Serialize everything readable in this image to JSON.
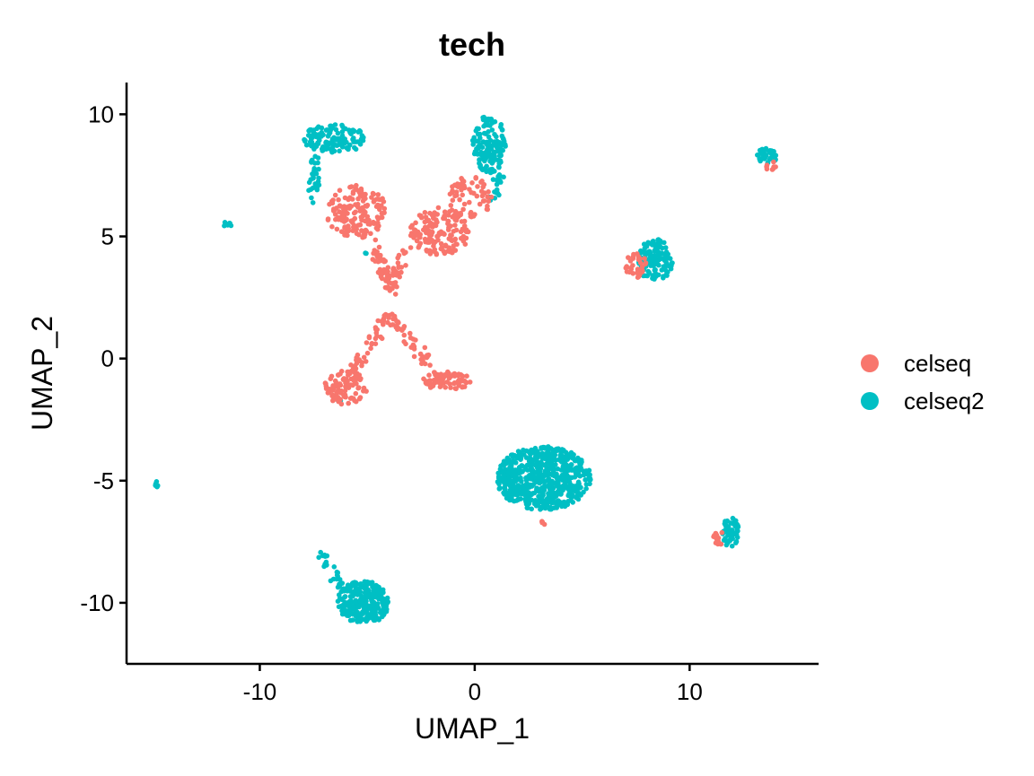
{
  "chart_data": {
    "type": "scatter",
    "title": "tech",
    "xlabel": "UMAP_1",
    "ylabel": "UMAP_2",
    "xlim": [
      -16.2,
      16
    ],
    "ylim": [
      -12.5,
      11.3
    ],
    "xticks": [
      -10,
      0,
      10
    ],
    "yticks": [
      -10,
      -5,
      0,
      5,
      10
    ],
    "grid": false,
    "legend_position": "right",
    "series": [
      {
        "name": "celseq",
        "color": "#F8766D"
      },
      {
        "name": "celseq2",
        "color": "#00BFC4"
      }
    ],
    "clusters": [
      {
        "series": "celseq",
        "shape": "ellipse",
        "cx": -5.5,
        "cy": 6.0,
        "rx": 1.4,
        "ry": 1.1,
        "n": 160
      },
      {
        "series": "celseq",
        "shape": "ellipse",
        "cx": -1.6,
        "cy": 5.2,
        "rx": 1.4,
        "ry": 1.0,
        "n": 150
      },
      {
        "series": "celseq",
        "shape": "ellipse",
        "cx": -0.2,
        "cy": 6.6,
        "rx": 1.0,
        "ry": 0.9,
        "n": 60
      },
      {
        "series": "celseq",
        "shape": "line",
        "from": [
          -4.7,
          4.7
        ],
        "to": [
          -3.9,
          2.8
        ],
        "n": 45
      },
      {
        "series": "celseq",
        "shape": "line",
        "from": [
          -3.1,
          4.6
        ],
        "to": [
          -3.9,
          2.9
        ],
        "n": 30
      },
      {
        "series": "celseq",
        "shape": "line",
        "from": [
          -4.0,
          1.8
        ],
        "to": [
          -5.6,
          -0.5
        ],
        "n": 45
      },
      {
        "series": "celseq",
        "shape": "line",
        "from": [
          -4.0,
          1.8
        ],
        "to": [
          -2.2,
          -0.2
        ],
        "n": 45
      },
      {
        "series": "celseq",
        "shape": "ellipse",
        "cx": -6.0,
        "cy": -1.2,
        "rx": 1.0,
        "ry": 0.7,
        "n": 90
      },
      {
        "series": "celseq",
        "shape": "ellipse",
        "cx": -1.3,
        "cy": -0.9,
        "rx": 1.1,
        "ry": 0.4,
        "n": 80
      },
      {
        "series": "celseq",
        "shape": "ellipse",
        "cx": 7.5,
        "cy": 3.8,
        "rx": 0.5,
        "ry": 0.5,
        "n": 35
      },
      {
        "series": "celseq",
        "shape": "ellipse",
        "cx": 11.4,
        "cy": -7.3,
        "rx": 0.3,
        "ry": 0.4,
        "n": 14
      },
      {
        "series": "celseq",
        "shape": "ellipse",
        "cx": 13.8,
        "cy": 7.9,
        "rx": 0.3,
        "ry": 0.2,
        "n": 8
      },
      {
        "series": "celseq",
        "shape": "ellipse",
        "cx": 3.2,
        "cy": -6.8,
        "rx": 0.15,
        "ry": 0.15,
        "n": 4
      },
      {
        "series": "celseq2",
        "shape": "ellipse",
        "cx": -6.5,
        "cy": 9.0,
        "rx": 1.5,
        "ry": 0.6,
        "n": 130
      },
      {
        "series": "celseq2",
        "shape": "line",
        "from": [
          -7.4,
          8.4
        ],
        "to": [
          -7.5,
          6.6
        ],
        "n": 30
      },
      {
        "series": "celseq2",
        "shape": "ellipse",
        "cx": 0.7,
        "cy": 8.8,
        "rx": 0.8,
        "ry": 1.2,
        "n": 140
      },
      {
        "series": "celseq2",
        "shape": "line",
        "from": [
          1.2,
          7.6
        ],
        "to": [
          0.8,
          6.6
        ],
        "n": 20
      },
      {
        "series": "celseq2",
        "shape": "ellipse",
        "cx": 13.6,
        "cy": 8.3,
        "rx": 0.5,
        "ry": 0.3,
        "n": 45
      },
      {
        "series": "celseq2",
        "shape": "ellipse",
        "cx": 8.4,
        "cy": 4.0,
        "rx": 0.8,
        "ry": 0.9,
        "n": 110
      },
      {
        "series": "celseq2",
        "shape": "ellipse",
        "cx": 3.2,
        "cy": -4.9,
        "rx": 2.2,
        "ry": 1.3,
        "n": 600
      },
      {
        "series": "celseq2",
        "shape": "ellipse",
        "cx": 11.9,
        "cy": -7.1,
        "rx": 0.4,
        "ry": 0.6,
        "n": 50
      },
      {
        "series": "celseq2",
        "shape": "ellipse",
        "cx": -5.2,
        "cy": -10.0,
        "rx": 1.2,
        "ry": 0.9,
        "n": 260
      },
      {
        "series": "celseq2",
        "shape": "line",
        "from": [
          -7.2,
          -8.1
        ],
        "to": [
          -6.0,
          -9.6
        ],
        "n": 30
      },
      {
        "series": "celseq2",
        "shape": "ellipse",
        "cx": -11.5,
        "cy": 5.5,
        "rx": 0.2,
        "ry": 0.12,
        "n": 7
      },
      {
        "series": "celseq2",
        "shape": "ellipse",
        "cx": -14.8,
        "cy": -5.15,
        "rx": 0.1,
        "ry": 0.12,
        "n": 6
      },
      {
        "series": "celseq2",
        "shape": "ellipse",
        "cx": -5.1,
        "cy": 4.3,
        "rx": 0.1,
        "ry": 0.1,
        "n": 2
      },
      {
        "series": "celseq2",
        "shape": "ellipse",
        "cx": -6.3,
        "cy": -1.8,
        "rx": 0.1,
        "ry": 0.1,
        "n": 2
      }
    ]
  }
}
